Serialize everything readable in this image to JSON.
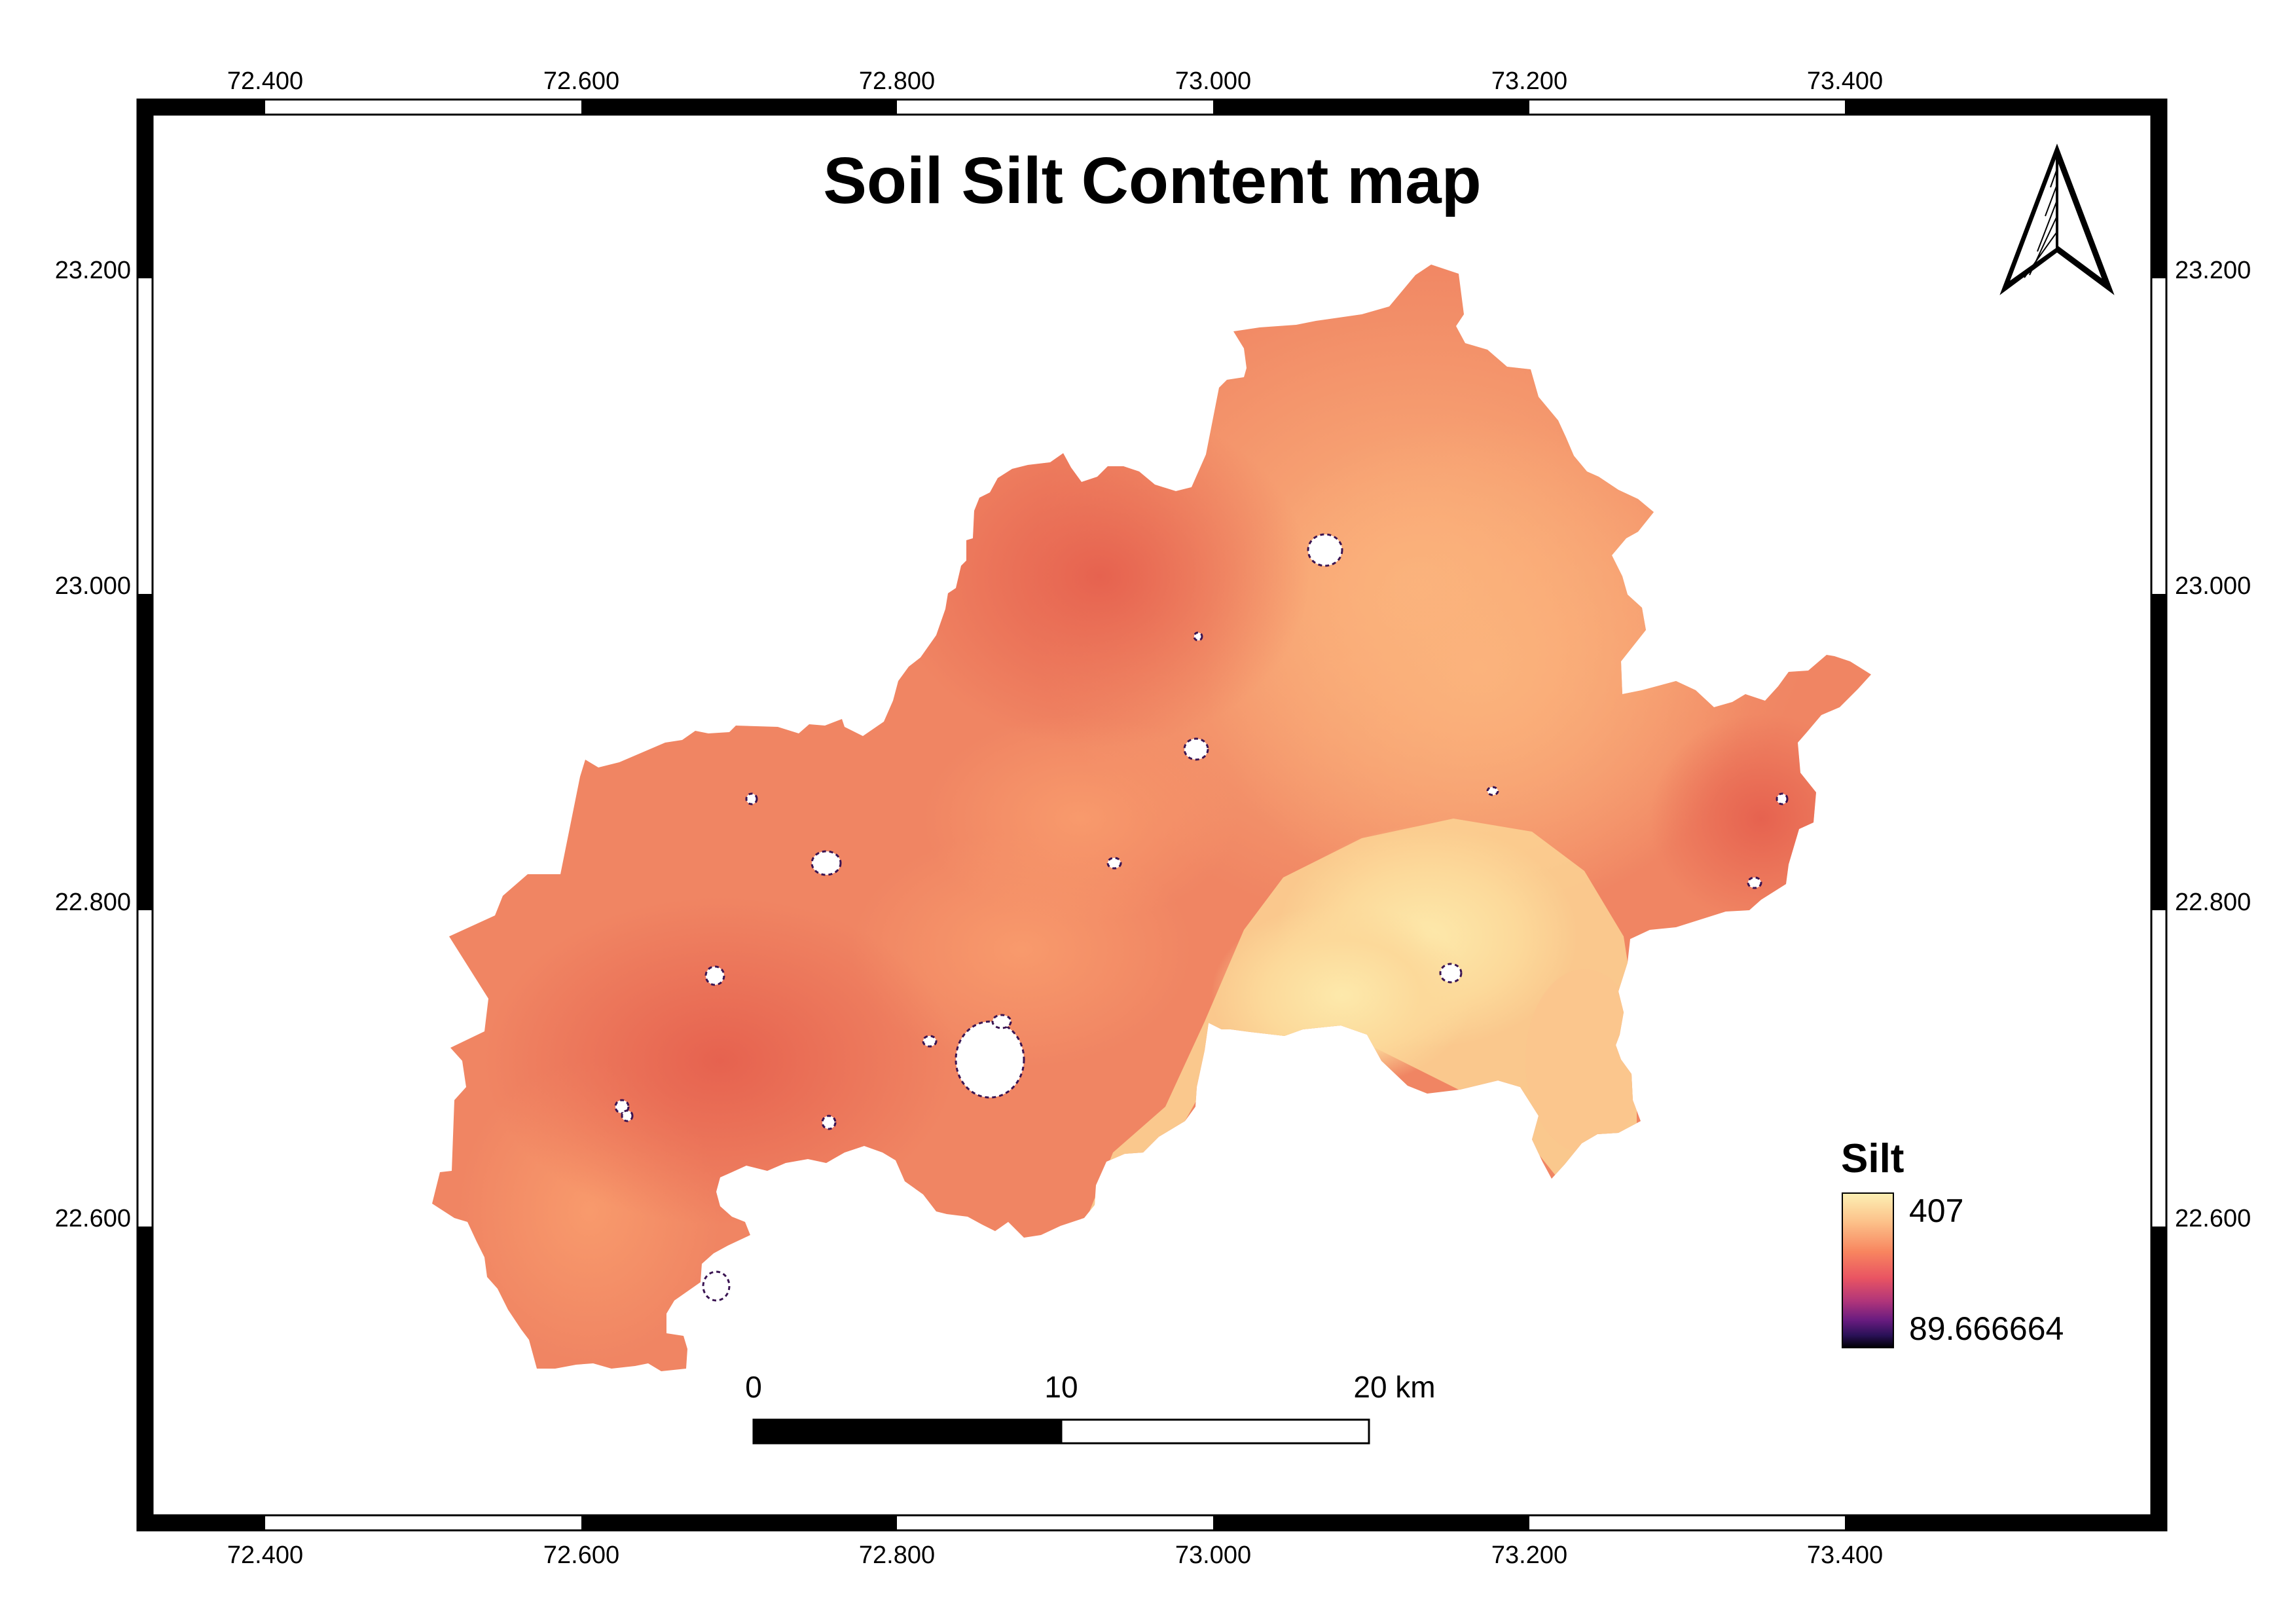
{
  "map": {
    "title": "Soil Silt Content map",
    "north_arrow_icon": "north-arrow-icon",
    "longitude_ticks": [
      "72.400",
      "72.600",
      "72.800",
      "73.000",
      "73.200",
      "73.400"
    ],
    "latitude_ticks": [
      "23.200",
      "23.000",
      "22.800",
      "22.600"
    ],
    "legend": {
      "title": "Silt",
      "max_label": "407",
      "min_label": "89.666664",
      "colors": [
        "#fcf0b4",
        "#fcc38b",
        "#f8855f",
        "#e95462",
        "#b0357a",
        "#6a1c80",
        "#2a1158",
        "#000004"
      ]
    },
    "scale_bar": {
      "labels": [
        "0",
        "10",
        "20 km"
      ]
    },
    "colors": {
      "frame": "#000000",
      "high": "#fde5a6",
      "mid": "#f9b07a",
      "low": "#ef7656",
      "nodata": "#ffffff"
    }
  }
}
